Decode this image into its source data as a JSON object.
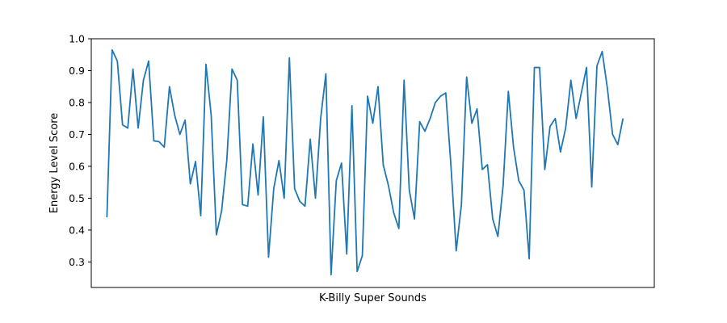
{
  "chart_data": {
    "type": "line",
    "title": "",
    "xlabel": "K-Billy Super Sounds",
    "ylabel": "Energy Level Score",
    "x_ticks_shown": false,
    "grid": false,
    "legend": "none",
    "xlim": [
      -3,
      105
    ],
    "ylim": [
      0.22,
      1.0
    ],
    "yticks": [
      0.3,
      0.4,
      0.5,
      0.6,
      0.7,
      0.8,
      0.9,
      1.0
    ],
    "ytick_labels": [
      "0.3",
      "0.4",
      "0.5",
      "0.6",
      "0.7",
      "0.8",
      "0.9",
      "1.0"
    ],
    "series": [
      {
        "color": "#1f77b4",
        "values": [
          0.44,
          0.965,
          0.93,
          0.73,
          0.72,
          0.905,
          0.72,
          0.87,
          0.93,
          0.68,
          0.677,
          0.66,
          0.85,
          0.76,
          0.7,
          0.745,
          0.545,
          0.615,
          0.445,
          0.92,
          0.76,
          0.385,
          0.46,
          0.62,
          0.905,
          0.87,
          0.48,
          0.475,
          0.67,
          0.51,
          0.755,
          0.315,
          0.53,
          0.618,
          0.5,
          0.94,
          0.53,
          0.49,
          0.475,
          0.685,
          0.5,
          0.75,
          0.89,
          0.26,
          0.555,
          0.61,
          0.325,
          0.79,
          0.27,
          0.32,
          0.82,
          0.735,
          0.85,
          0.605,
          0.54,
          0.455,
          0.405,
          0.87,
          0.525,
          0.435,
          0.74,
          0.71,
          0.75,
          0.8,
          0.82,
          0.83,
          0.6,
          0.335,
          0.48,
          0.88,
          0.735,
          0.78,
          0.59,
          0.605,
          0.435,
          0.38,
          0.54,
          0.835,
          0.66,
          0.555,
          0.525,
          0.31,
          0.91,
          0.91,
          0.59,
          0.725,
          0.75,
          0.645,
          0.72,
          0.87,
          0.75,
          0.83,
          0.91,
          0.535,
          0.915,
          0.96,
          0.845,
          0.7,
          0.668,
          0.75
        ]
      }
    ]
  }
}
